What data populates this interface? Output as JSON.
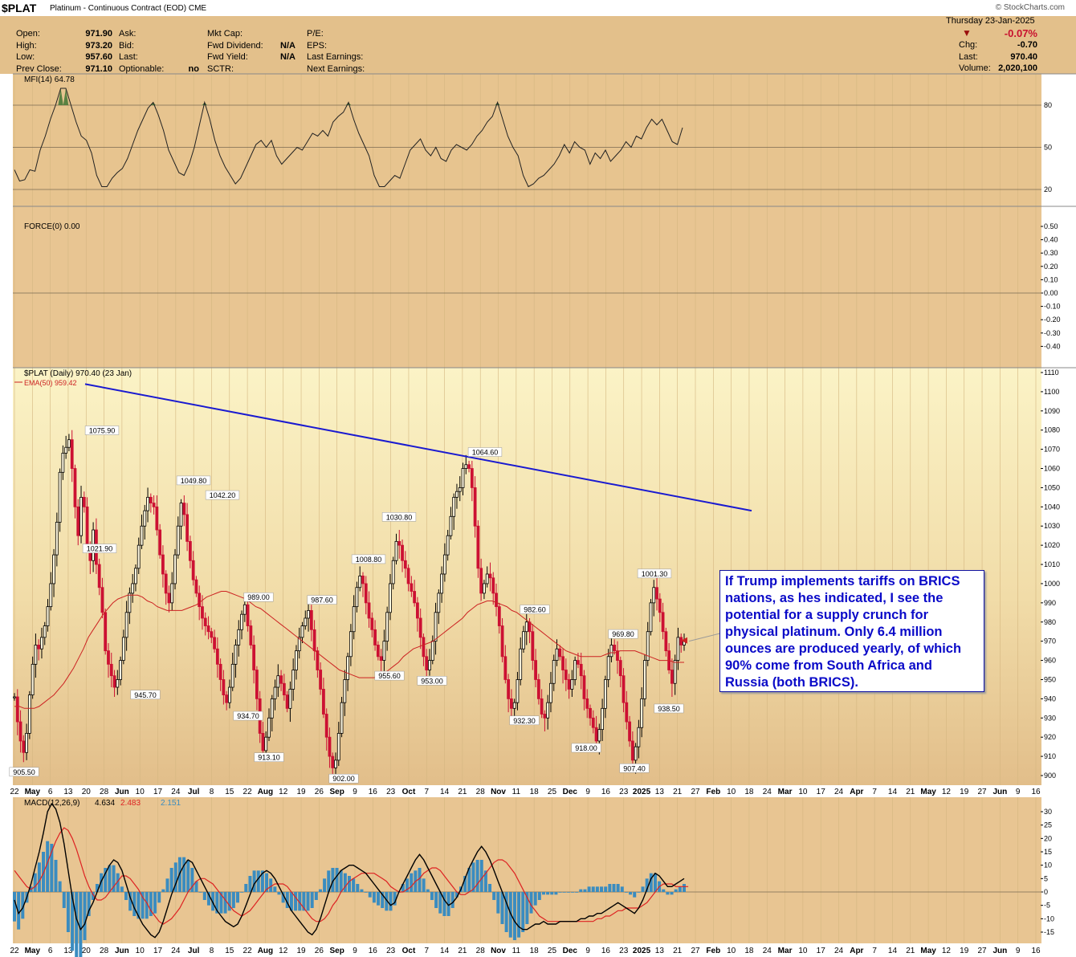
{
  "header": {
    "ticker": "$PLAT",
    "subtitle": "Platinum - Continuous Contract (EOD)",
    "exchange": "CME",
    "source": "© StockCharts.com",
    "date_line": "Thursday  23-Jan-2025",
    "change_pct": "-0.07%",
    "quote_left": [
      {
        "label": "Open:",
        "value": "971.90"
      },
      {
        "label": "High:",
        "value": "973.20"
      },
      {
        "label": "Low:",
        "value": "957.60"
      },
      {
        "label": "Prev Close:",
        "value": "971.10"
      }
    ],
    "quote_mid": [
      {
        "label": "Ask:",
        "value": ""
      },
      {
        "label": "Bid:",
        "value": ""
      },
      {
        "label": "Last:",
        "value": ""
      },
      {
        "label": "Optionable:",
        "value": "no"
      }
    ],
    "quote_mid2": [
      {
        "label": "Mkt Cap:",
        "value": ""
      },
      {
        "label": "Fwd Dividend:",
        "value": "N/A"
      },
      {
        "label": "Fwd Yield:",
        "value": "N/A"
      },
      {
        "label": "SCTR:",
        "value": ""
      }
    ],
    "quote_mid3": [
      {
        "label": "P/E:",
        "value": ""
      },
      {
        "label": "EPS:",
        "value": ""
      },
      {
        "label": "Last Earnings:",
        "value": ""
      },
      {
        "label": "Next Earnings:",
        "value": ""
      }
    ],
    "quote_right": [
      {
        "label": "Chg:",
        "value": "-0.70"
      },
      {
        "label": "Last:",
        "value": "970.40"
      },
      {
        "label": "Volume:",
        "value": "2,020,100"
      }
    ]
  },
  "annotation": "If Trump implements tariffs on BRICS nations, as hes indicated, I see the potential for a supply crunch for physical platinum. Only 6.4 million ounces are produced yearly, of which 90% come from South Africa and Russia (both BRICS).",
  "colors": {
    "panel_bg": "#e3c592",
    "up": "#000000",
    "down": "#cc1133",
    "ema": "#cc2222",
    "trendline": "#1a1ad0",
    "hist": "#3a8cc0",
    "annotation_text": "#0a0ac8"
  },
  "x_axis_labels": [
    "22",
    "May",
    "6",
    "13",
    "20",
    "28",
    "Jun",
    "10",
    "17",
    "24",
    "Jul",
    "8",
    "15",
    "22",
    "Aug",
    "12",
    "19",
    "26",
    "Sep",
    "9",
    "16",
    "23",
    "Oct",
    "7",
    "14",
    "21",
    "28",
    "Nov",
    "11",
    "18",
    "25",
    "Dec",
    "9",
    "16",
    "23",
    "2025",
    "13",
    "21",
    "27",
    "Feb",
    "10",
    "18",
    "24",
    "Mar",
    "10",
    "17",
    "24",
    "Apr",
    "7",
    "14",
    "21",
    "May",
    "12",
    "19",
    "27",
    "Jun",
    "9",
    "16"
  ],
  "chart_data": [
    {
      "type": "line",
      "panel": "MFI",
      "title": "MFI(14) 64.78",
      "ylim": [
        0,
        100
      ],
      "y_ticks": [
        "80",
        "50",
        "20"
      ],
      "series": [
        {
          "name": "MFI(14)",
          "values": [
            34,
            26,
            27,
            34,
            33,
            48,
            58,
            70,
            80,
            92,
            92,
            80,
            68,
            58,
            55,
            46,
            30,
            22,
            22,
            28,
            32,
            35,
            42,
            52,
            62,
            70,
            78,
            82,
            73,
            62,
            48,
            40,
            32,
            30,
            38,
            50,
            66,
            82,
            70,
            55,
            44,
            36,
            30,
            24,
            28,
            36,
            44,
            52,
            55,
            50,
            55,
            44,
            38,
            42,
            46,
            50,
            48,
            54,
            60,
            58,
            62,
            58,
            68,
            72,
            75,
            82,
            70,
            60,
            52,
            44,
            30,
            22,
            22,
            26,
            30,
            28,
            38,
            48,
            52,
            56,
            48,
            44,
            50,
            42,
            40,
            48,
            52,
            50,
            48,
            52,
            58,
            62,
            68,
            72,
            82,
            70,
            58,
            50,
            44,
            30,
            22,
            24,
            28,
            30,
            34,
            38,
            44,
            52,
            46,
            54,
            50,
            48,
            38,
            46,
            42,
            48,
            40,
            44,
            48,
            54,
            50,
            58,
            56,
            64,
            70,
            66,
            70,
            62,
            54,
            52,
            64
          ]
        }
      ]
    },
    {
      "type": "line",
      "panel": "FORCE",
      "title": "FORCE(0) 0.00",
      "ylim": [
        -0.5,
        0.5
      ],
      "y_ticks": [
        "0.50",
        "0.40",
        "0.30",
        "0.20",
        "0.10",
        "0.00",
        "-0.10",
        "-0.20",
        "-0.30",
        "-0.40"
      ],
      "series": [
        {
          "name": "FORCE(0)",
          "values": [
            0,
            0
          ]
        }
      ]
    },
    {
      "type": "candlestick",
      "panel": "price",
      "title": "$PLAT (Daily) 970.40 (23 Jan)",
      "legend": [
        "EMA(50) 959.42"
      ],
      "ylim": [
        895,
        1112
      ],
      "y_ticks": [
        "1110",
        "1100",
        "1090",
        "1080",
        "1070",
        "1060",
        "1050",
        "1040",
        "1030",
        "1020",
        "1010",
        "1000",
        "990",
        "980",
        "970",
        "960",
        "950",
        "940",
        "930",
        "920",
        "910",
        "900"
      ],
      "close_path": [
        941,
        928,
        918,
        912,
        922,
        942,
        958,
        968,
        966,
        972,
        978,
        988,
        1000,
        1015,
        1032,
        1058,
        1068,
        1071,
        1075,
        1060,
        1040,
        1025,
        1045,
        1040,
        1020,
        1012,
        1028,
        1010,
        998,
        985,
        965,
        958,
        952,
        946,
        950,
        960,
        972,
        985,
        995,
        1000,
        1008,
        1020,
        1030,
        1038,
        1045,
        1042,
        1040,
        1028,
        1015,
        1005,
        995,
        990,
        1000,
        1015,
        1030,
        1042,
        1036,
        1022,
        1012,
        1002,
        995,
        988,
        982,
        978,
        975,
        972,
        966,
        958,
        950,
        942,
        938,
        946,
        958,
        968,
        976,
        984,
        989,
        978,
        968,
        955,
        940,
        922,
        913,
        920,
        930,
        940,
        946,
        952,
        948,
        942,
        935,
        945,
        955,
        965,
        972,
        978,
        982,
        986,
        976,
        965,
        955,
        945,
        932,
        920,
        910,
        904,
        908,
        922,
        938,
        950,
        962,
        975,
        988,
        998,
        1004,
        1000,
        990,
        982,
        976,
        968,
        962,
        960,
        970,
        985,
        1000,
        1012,
        1022,
        1020,
        1012,
        1008,
        1000,
        996,
        990,
        982,
        972,
        962,
        955,
        960,
        970,
        985,
        995,
        1005,
        1015,
        1025,
        1035,
        1045,
        1048,
        1050,
        1060,
        1062,
        1060,
        1050,
        1030,
        1008,
        995,
        1000,
        1005,
        1003,
        995,
        988,
        978,
        962,
        950,
        940,
        935,
        938,
        950,
        966,
        975,
        980,
        975,
        960,
        950,
        940,
        932,
        930,
        938,
        948,
        960,
        966,
        962,
        955,
        950,
        945,
        950,
        960,
        958,
        952,
        940,
        935,
        930,
        925,
        918,
        924,
        935,
        950,
        962,
        968,
        965,
        960,
        952,
        938,
        928,
        918,
        908,
        915,
        925,
        940,
        960,
        975,
        990,
        998,
        992,
        985,
        975,
        965,
        955,
        948,
        960,
        972,
        968,
        970
      ],
      "ema50_path": [
        936,
        936,
        935,
        935,
        935,
        936,
        938,
        940,
        942,
        945,
        948,
        952,
        956,
        961,
        966,
        972,
        976,
        980,
        984,
        987,
        990,
        992,
        993,
        994,
        994,
        994,
        993,
        991,
        990,
        988,
        987,
        986,
        986,
        986,
        986,
        987,
        988,
        989,
        991,
        993,
        994,
        995,
        996,
        996,
        995,
        994,
        993,
        992,
        990,
        988,
        987,
        985,
        983,
        981,
        979,
        977,
        975,
        973,
        971,
        969,
        967,
        965,
        963,
        961,
        959,
        957,
        955,
        954,
        953,
        952,
        951,
        951,
        951,
        951,
        952,
        953,
        955,
        957,
        959,
        962,
        964,
        966,
        967,
        968,
        969,
        970,
        972,
        974,
        976,
        978,
        980,
        982,
        985,
        987,
        989,
        990,
        991,
        991,
        990,
        989,
        988,
        986,
        985,
        983,
        981,
        979,
        977,
        975,
        973,
        971,
        969,
        967,
        965,
        964,
        963,
        962,
        962,
        962,
        962,
        962,
        963,
        964,
        964,
        965,
        965,
        965,
        965,
        964,
        963,
        962,
        961,
        960,
        960,
        960,
        959,
        959,
        959
      ],
      "peak_labels": [
        {
          "label": "905.50",
          "value": 905.5
        },
        {
          "label": "1075.90",
          "value": 1075.9
        },
        {
          "label": "1021.90",
          "value": 1021.9
        },
        {
          "label": "945.70",
          "value": 945.7
        },
        {
          "label": "1049.80",
          "value": 1049.8
        },
        {
          "label": "1042.20",
          "value": 1042.2
        },
        {
          "label": "934.70",
          "value": 934.7
        },
        {
          "label": "989.00",
          "value": 989.0
        },
        {
          "label": "913.10",
          "value": 913.1
        },
        {
          "label": "987.60",
          "value": 987.6
        },
        {
          "label": "902.00",
          "value": 902.0
        },
        {
          "label": "1008.80",
          "value": 1008.8
        },
        {
          "label": "955.60",
          "value": 955.6
        },
        {
          "label": "1030.80",
          "value": 1030.8
        },
        {
          "label": "953.00",
          "value": 953.0
        },
        {
          "label": "1064.60",
          "value": 1064.6
        },
        {
          "label": "932.30",
          "value": 932.3
        },
        {
          "label": "982.60",
          "value": 982.6
        },
        {
          "label": "918.00",
          "value": 918.0
        },
        {
          "label": "969.80",
          "value": 969.8
        },
        {
          "label": "907.40",
          "value": 907.4
        },
        {
          "label": "1001.30",
          "value": 1001.3
        },
        {
          "label": "938.50",
          "value": 938.5
        }
      ],
      "trendline": {
        "start": 1104,
        "end": 1038
      }
    },
    {
      "type": "line",
      "panel": "MACD",
      "title": "MACD(12,26,9)",
      "legend_values": [
        "4.634",
        "2.483",
        "2.151"
      ],
      "ylim": [
        -18,
        34
      ],
      "y_ticks": [
        "30",
        "25",
        "20",
        "15",
        "10",
        "5",
        "0",
        "-5",
        "-10",
        "-15"
      ],
      "series": [
        {
          "name": "MACD",
          "values": [
            -3,
            -8,
            -6,
            -2,
            3,
            9,
            15,
            22,
            30,
            33,
            31,
            26,
            18,
            8,
            -2,
            -10,
            -14,
            -12,
            -7,
            -4,
            0,
            4,
            7,
            10,
            12,
            11,
            8,
            3,
            -2,
            -6,
            -9,
            -12,
            -14,
            -16,
            -17,
            -15,
            -11,
            -6,
            -1,
            3,
            7,
            10,
            12,
            11,
            8,
            5,
            2,
            -1,
            -4,
            -7,
            -9,
            -11,
            -12,
            -13,
            -12,
            -9,
            -5,
            -1,
            3,
            5,
            7,
            8,
            7,
            5,
            2,
            -1,
            -4,
            -7,
            -9,
            -11,
            -13,
            -15,
            -16,
            -14,
            -10,
            -5,
            0,
            4,
            6,
            8,
            9,
            10,
            10,
            9,
            8,
            7,
            5,
            3,
            1,
            -1,
            -3,
            -5,
            -4,
            0,
            3,
            6,
            9,
            12,
            14,
            12,
            9,
            6,
            3,
            0,
            -3,
            -5,
            -4,
            -2,
            1,
            5,
            9,
            12,
            15,
            17,
            15,
            12,
            8,
            4,
            0,
            -4,
            -8,
            -11,
            -13,
            -14,
            -14,
            -13,
            -12,
            -12,
            -11,
            -12,
            -12,
            -12,
            -11,
            -11,
            -11,
            -11,
            -11,
            -10,
            -10,
            -9,
            -9,
            -8,
            -8,
            -7,
            -6,
            -5,
            -4,
            -5,
            -6,
            -7,
            -8,
            -6,
            -3,
            1,
            5,
            7,
            6,
            4,
            2,
            2,
            3,
            4,
            5
          ]
        },
        {
          "name": "Signal",
          "values": [
            8,
            6,
            4,
            2,
            1,
            2,
            4,
            7,
            11,
            15,
            19,
            22,
            24,
            23,
            20,
            16,
            11,
            6,
            2,
            -1,
            -3,
            -3,
            -2,
            0,
            2,
            4,
            6,
            6,
            5,
            3,
            1,
            -2,
            -4,
            -7,
            -9,
            -11,
            -12,
            -11,
            -10,
            -8,
            -6,
            -3,
            0,
            2,
            4,
            5,
            5,
            4,
            3,
            1,
            -1,
            -3,
            -5,
            -7,
            -8,
            -9,
            -8,
            -7,
            -5,
            -3,
            -1,
            1,
            2,
            3,
            3,
            3,
            2,
            0,
            -2,
            -4,
            -6,
            -8,
            -10,
            -11,
            -11,
            -10,
            -8,
            -5,
            -3,
            0,
            2,
            4,
            5,
            6,
            7,
            7,
            7,
            7,
            6,
            5,
            4,
            2,
            1,
            0,
            0,
            1,
            2,
            4,
            5,
            7,
            8,
            9,
            9,
            8,
            6,
            4,
            2,
            0,
            -1,
            -1,
            0,
            1,
            3,
            5,
            7,
            9,
            11,
            12,
            12,
            11,
            9,
            7,
            4,
            1,
            -2,
            -5,
            -7,
            -9,
            -10,
            -11,
            -11,
            -11,
            -11,
            -11,
            -11,
            -11,
            -11,
            -11,
            -11,
            -11,
            -11,
            -10,
            -10,
            -9,
            -9,
            -8,
            -7,
            -7,
            -6,
            -6,
            -6,
            -6,
            -5,
            -4,
            -2,
            0,
            2,
            3,
            3,
            3,
            2,
            2,
            2,
            2
          ]
        }
      ]
    }
  ]
}
